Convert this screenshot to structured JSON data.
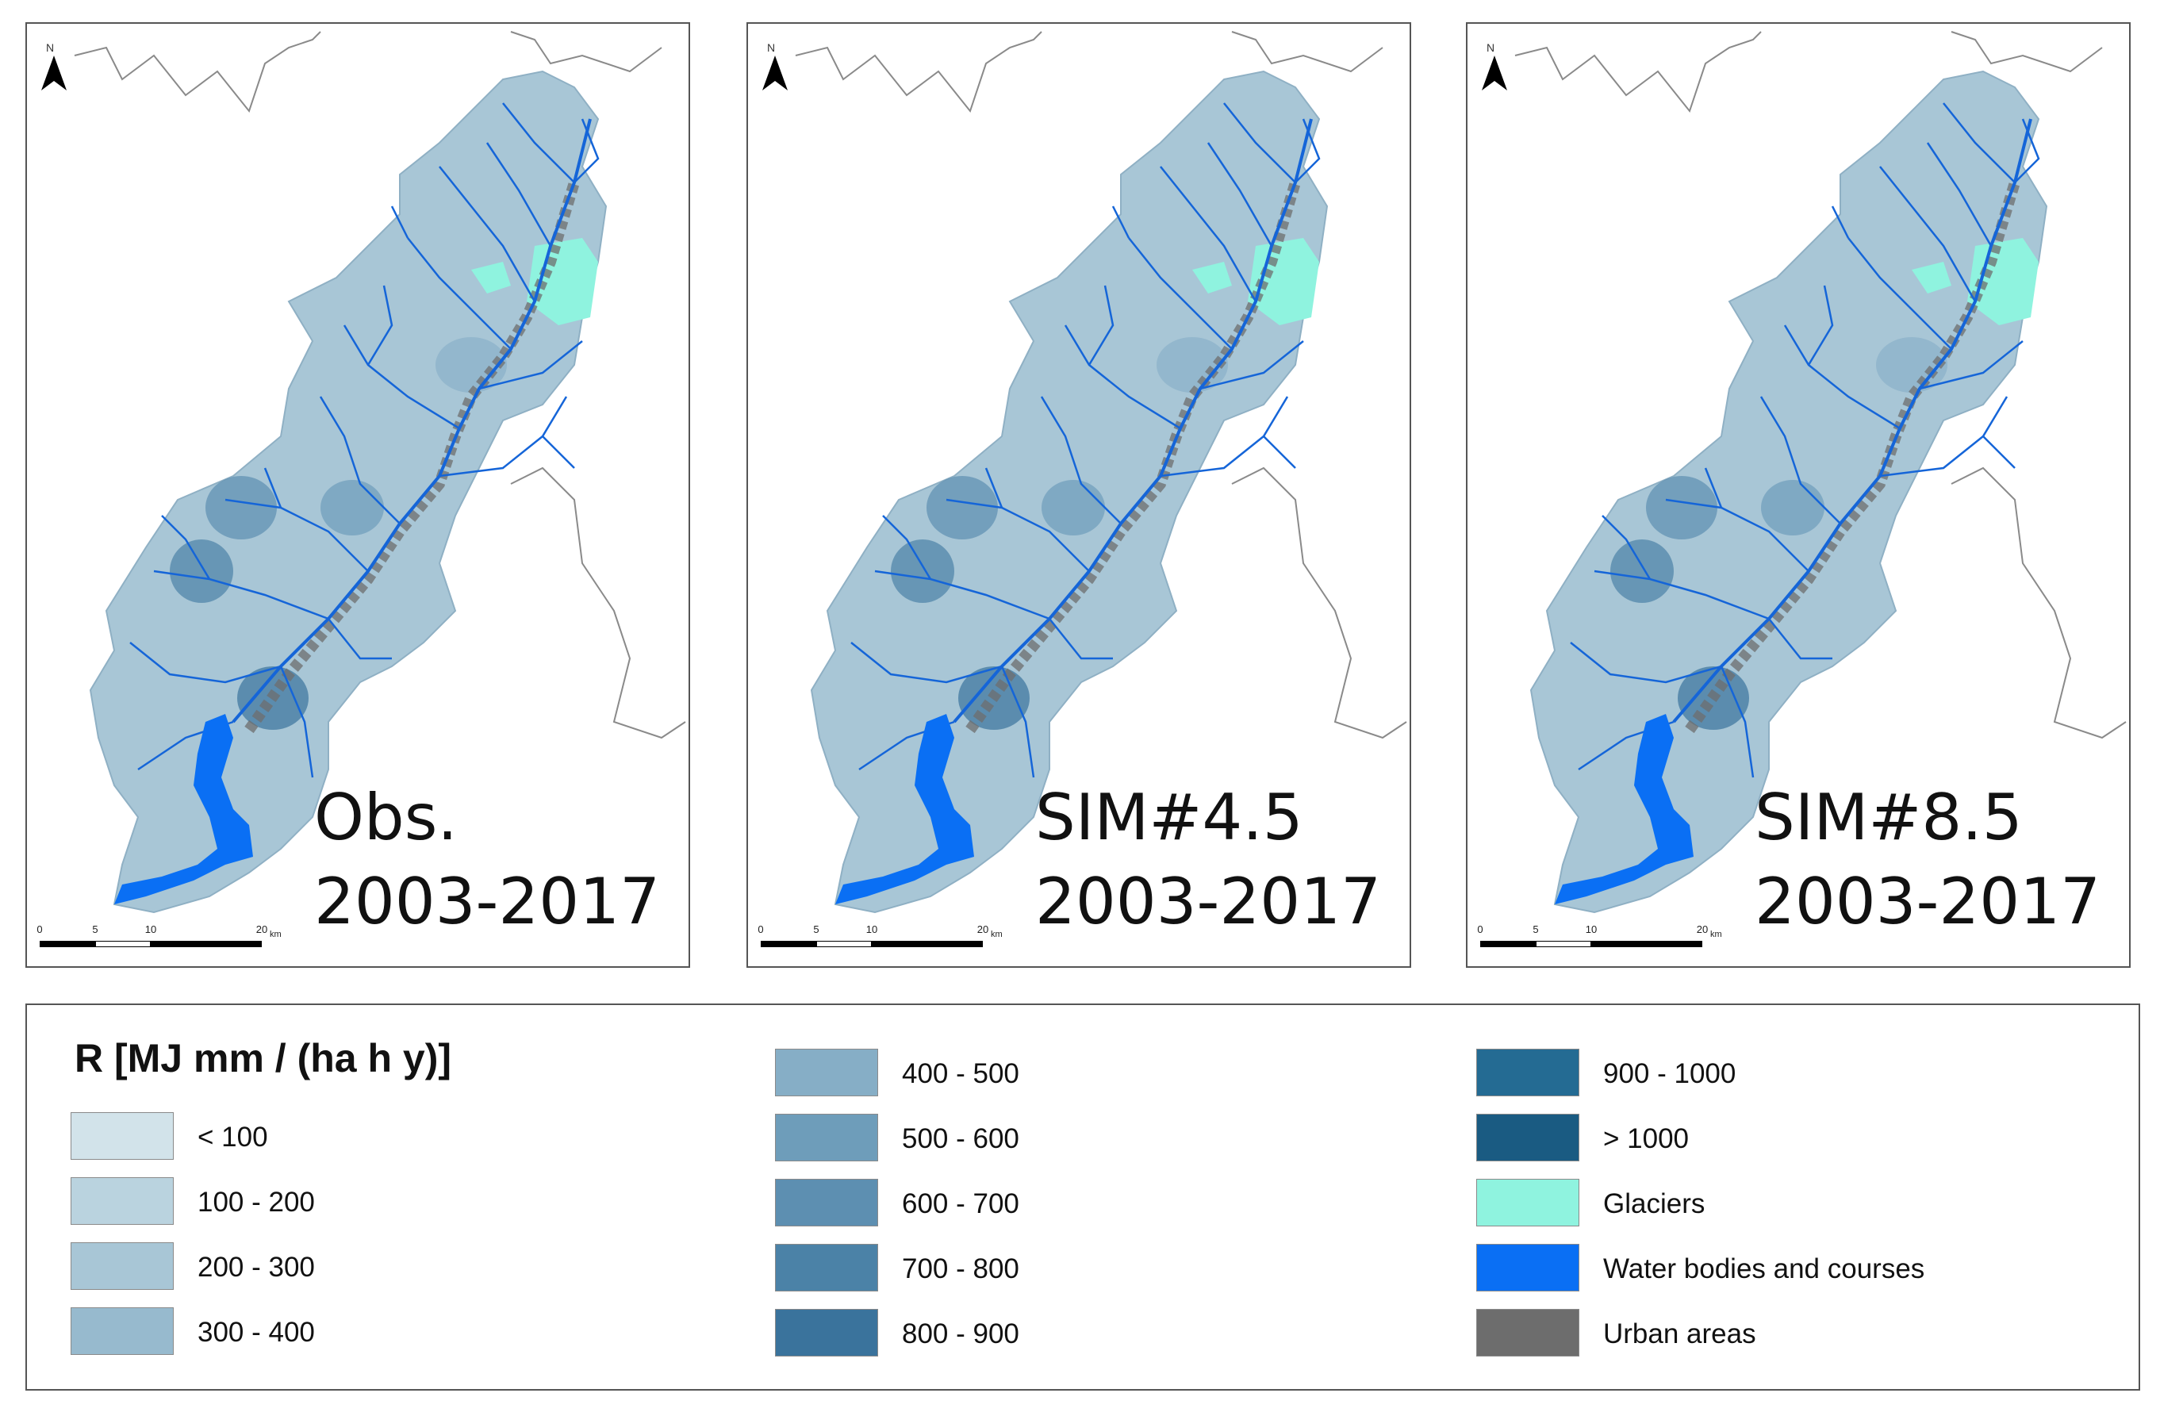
{
  "panels": [
    {
      "id": "obs",
      "caption_line1": "Obs.",
      "caption_line2": "2003-2017"
    },
    {
      "id": "sim45",
      "caption_line1": "SIM#4.5",
      "caption_line2": "2003-2017"
    },
    {
      "id": "sim85",
      "caption_line1": "SIM#8.5",
      "caption_line2": "2003-2017"
    }
  ],
  "north_arrow": {
    "letter": "N"
  },
  "scale_bar": {
    "ticks": [
      "0",
      "5",
      "10",
      "20"
    ],
    "unit": "km"
  },
  "legend": {
    "title": "R [MJ mm / (ha h y)]",
    "columns": [
      [
        {
          "label": "< 100",
          "color": "#d2e3ea"
        },
        {
          "label": "100 - 200",
          "color": "#bad3df"
        },
        {
          "label": "200 - 300",
          "color": "#a8c6d6"
        },
        {
          "label": "300 - 400",
          "color": "#97bace"
        }
      ],
      [
        {
          "label": "400 - 500",
          "color": "#86aec6"
        },
        {
          "label": "500 - 600",
          "color": "#6e9dba"
        },
        {
          "label": "600 - 700",
          "color": "#5d8fb1"
        },
        {
          "label": "700 - 800",
          "color": "#4b82a7"
        },
        {
          "label": "800 - 900",
          "color": "#3a739c"
        }
      ],
      [
        {
          "label": "900 - 1000",
          "color": "#246b93"
        },
        {
          "label": "> 1000",
          "color": "#1a5b82"
        },
        {
          "label": "Glaciers",
          "color": "#8ff3df"
        },
        {
          "label": "Water bodies and courses",
          "color": "#0a6ff4"
        },
        {
          "label": "Urban areas",
          "color": "#6d6d6d"
        }
      ]
    ]
  },
  "colors": {
    "catchment_base": "#a8c6d6",
    "river": "#1565d8",
    "lake": "#0a6ff4",
    "glacier": "#8ff3df",
    "urban": "#6d6d6d",
    "border": "#8a8a8a"
  }
}
